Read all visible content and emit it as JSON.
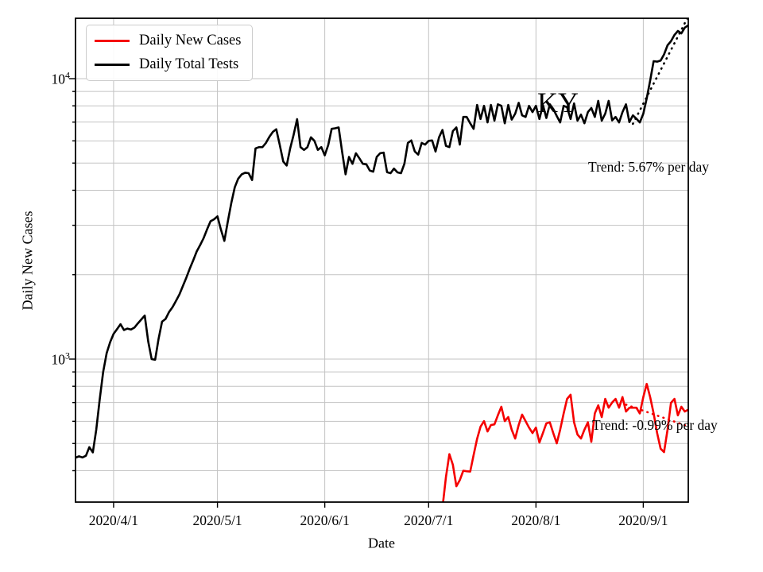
{
  "chart_data": {
    "type": "line",
    "title": "",
    "xlabel": "Date",
    "ylabel": "Daily New Cases",
    "yscale": "log",
    "grid": true,
    "ylim": [
      297,
      16400
    ],
    "x_range": {
      "start": "2020-03-21",
      "end": "2020-09-14"
    },
    "xticks": [
      {
        "label": "2020/4/1",
        "date": "2020-04-01"
      },
      {
        "label": "2020/5/1",
        "date": "2020-05-01"
      },
      {
        "label": "2020/6/1",
        "date": "2020-06-01"
      },
      {
        "label": "2020/7/1",
        "date": "2020-07-01"
      },
      {
        "label": "2020/8/1",
        "date": "2020-08-01"
      },
      {
        "label": "2020/9/1",
        "date": "2020-09-01"
      }
    ],
    "yticks": [
      {
        "value": 1000,
        "base": "10",
        "exp": "3"
      },
      {
        "value": 10000,
        "base": "10",
        "exp": "4"
      }
    ],
    "y_gridlines": [
      400,
      500,
      600,
      700,
      800,
      900,
      1000,
      2000,
      3000,
      4000,
      5000,
      6000,
      7000,
      8000,
      9000,
      10000
    ],
    "legend_position": "upper left",
    "series": [
      {
        "name": "Daily New Cases",
        "color": "#f50000",
        "start_date": "2020-07-05",
        "values": [
          295,
          380,
          458,
          420,
          352,
          370,
          400,
          398,
          397,
          455,
          520,
          574,
          601,
          552,
          582,
          585,
          630,
          676,
          601,
          621,
          560,
          521,
          582,
          634,
          601,
          570,
          545,
          570,
          504,
          545,
          590,
          595,
          545,
          501,
          560,
          640,
          721,
          746,
          595,
          538,
          521,
          560,
          595,
          507,
          640,
          684,
          621,
          721,
          671,
          700,
          721,
          671,
          732,
          650,
          671,
          671,
          671,
          640,
          732,
          816,
          730,
          640,
          545,
          479,
          466,
          560,
          698,
          721,
          630,
          676,
          650,
          660
        ]
      },
      {
        "name": "Daily Total Tests",
        "color": "#000000",
        "start_date": "2020-03-21",
        "values": [
          445,
          450,
          446,
          452,
          485,
          465,
          560,
          720,
          900,
          1050,
          1150,
          1230,
          1280,
          1332,
          1270,
          1285,
          1275,
          1295,
          1340,
          1385,
          1430,
          1155,
          1000,
          995,
          1180,
          1360,
          1390,
          1470,
          1530,
          1610,
          1700,
          1820,
          1950,
          2100,
          2250,
          2420,
          2550,
          2700,
          2900,
          3100,
          3150,
          3230,
          2900,
          2640,
          3100,
          3600,
          4100,
          4400,
          4560,
          4620,
          4600,
          4350,
          5640,
          5700,
          5700,
          5900,
          6200,
          6460,
          6600,
          5800,
          5060,
          4900,
          5640,
          6300,
          7170,
          5700,
          5570,
          5700,
          6180,
          6000,
          5570,
          5700,
          5330,
          5800,
          6620,
          6650,
          6700,
          5500,
          4560,
          5260,
          4970,
          5420,
          5200,
          4970,
          4950,
          4700,
          4660,
          5260,
          5420,
          5450,
          4640,
          4600,
          4780,
          4630,
          4600,
          4970,
          5900,
          6020,
          5500,
          5360,
          5900,
          5820,
          6000,
          6020,
          5500,
          6180,
          6560,
          5760,
          5700,
          6500,
          6700,
          5820,
          7300,
          7300,
          6930,
          6620,
          8060,
          7180,
          8000,
          6980,
          8060,
          7080,
          8100,
          8000,
          6930,
          8060,
          7140,
          7500,
          8200,
          7400,
          7300,
          8000,
          7600,
          8000,
          7180,
          8060,
          7240,
          8100,
          7800,
          7360,
          6980,
          8000,
          7900,
          7180,
          8160,
          7080,
          7440,
          6930,
          7600,
          7860,
          7300,
          8330,
          7080,
          7500,
          8330,
          7100,
          7300,
          6980,
          7600,
          8100,
          7000,
          7400,
          7200,
          6980,
          7500,
          8500,
          9870,
          11540,
          11500,
          11600,
          12200,
          13150,
          13600,
          14320,
          14790,
          14500,
          15200,
          15500
        ]
      }
    ],
    "trend_lines": [
      {
        "series": "Daily Total Tests",
        "label": "Trend: 5.67% per day",
        "percent_per_day": 5.67,
        "start_date": "2020-08-29",
        "start_value": 6900,
        "end_date": "2020-09-14",
        "color": "#000000",
        "style": "dotted"
      },
      {
        "series": "Daily New Cases",
        "label": "Trend: -0.99% per day",
        "percent_per_day": -0.99,
        "start_date": "2020-08-27",
        "start_value": 688,
        "end_date": "2020-09-14",
        "color": "#f50000",
        "style": "dotted"
      }
    ],
    "annotations": [
      {
        "text": "KY"
      },
      {
        "text": "Trend: 5.67% per day"
      },
      {
        "text": "Trend: -0.99% per day"
      }
    ]
  }
}
